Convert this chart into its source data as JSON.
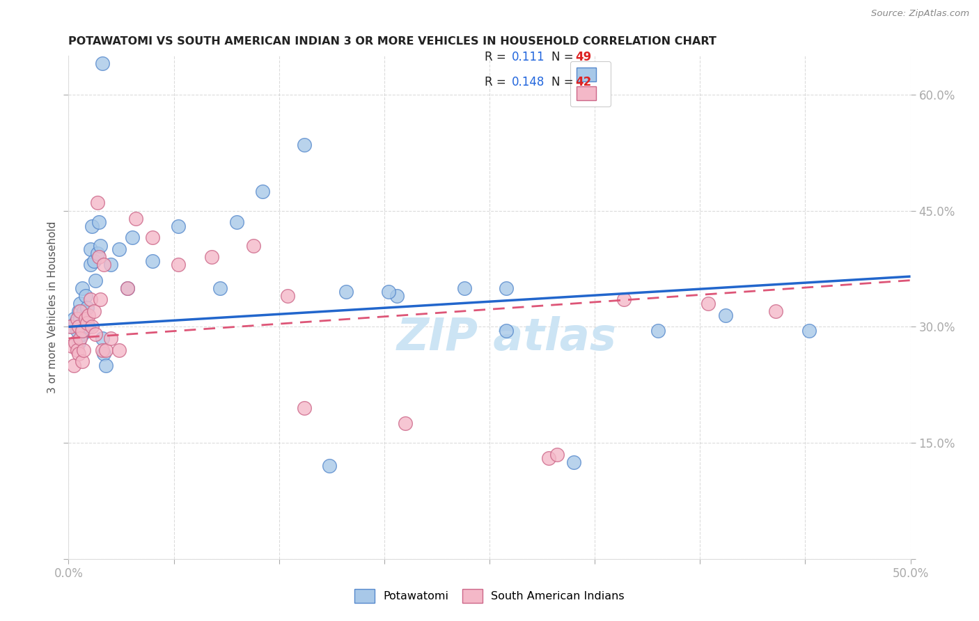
{
  "title": "POTAWATOMI VS SOUTH AMERICAN INDIAN 3 OR MORE VEHICLES IN HOUSEHOLD CORRELATION CHART",
  "source": "Source: ZipAtlas.com",
  "ylabel": "3 or more Vehicles in Household",
  "xlim": [
    0.0,
    0.5
  ],
  "ylim": [
    0.0,
    0.65
  ],
  "yticks": [
    0.0,
    0.15,
    0.3,
    0.45,
    0.6
  ],
  "xticks": [
    0.0,
    0.0625,
    0.125,
    0.1875,
    0.25,
    0.3125,
    0.375,
    0.4375,
    0.5
  ],
  "blue_scatter_color": "#a8c8e8",
  "blue_scatter_edge": "#5588cc",
  "pink_scatter_color": "#f4b8c8",
  "pink_scatter_edge": "#cc6688",
  "blue_line_color": "#2266cc",
  "pink_line_color": "#dd5577",
  "watermark_color": "#cce4f4",
  "title_color": "#222222",
  "source_color": "#888888",
  "tick_color": "#4499ee",
  "ylabel_color": "#555555",
  "background": "#ffffff",
  "grid_color": "#cccccc",
  "potawatomi_x": [
    0.002,
    0.003,
    0.004,
    0.005,
    0.006,
    0.006,
    0.007,
    0.007,
    0.008,
    0.008,
    0.009,
    0.009,
    0.01,
    0.01,
    0.011,
    0.012,
    0.013,
    0.013,
    0.014,
    0.015,
    0.016,
    0.017,
    0.018,
    0.019,
    0.02,
    0.021,
    0.022,
    0.025,
    0.03,
    0.035,
    0.038,
    0.05,
    0.065,
    0.09,
    0.1,
    0.115,
    0.14,
    0.165,
    0.195,
    0.235,
    0.26,
    0.3,
    0.35,
    0.39,
    0.44,
    0.155,
    0.26,
    0.19,
    0.02
  ],
  "potawatomi_y": [
    0.3,
    0.31,
    0.305,
    0.295,
    0.28,
    0.32,
    0.31,
    0.33,
    0.29,
    0.35,
    0.295,
    0.32,
    0.305,
    0.34,
    0.325,
    0.3,
    0.38,
    0.4,
    0.43,
    0.385,
    0.36,
    0.395,
    0.435,
    0.405,
    0.285,
    0.265,
    0.25,
    0.38,
    0.4,
    0.35,
    0.415,
    0.385,
    0.43,
    0.35,
    0.435,
    0.475,
    0.535,
    0.345,
    0.34,
    0.35,
    0.295,
    0.125,
    0.295,
    0.315,
    0.295,
    0.12,
    0.35,
    0.345,
    0.64
  ],
  "south_american_x": [
    0.001,
    0.002,
    0.003,
    0.004,
    0.005,
    0.005,
    0.006,
    0.006,
    0.007,
    0.007,
    0.008,
    0.008,
    0.009,
    0.01,
    0.011,
    0.012,
    0.013,
    0.014,
    0.015,
    0.016,
    0.017,
    0.018,
    0.019,
    0.02,
    0.021,
    0.022,
    0.025,
    0.03,
    0.035,
    0.04,
    0.05,
    0.065,
    0.085,
    0.11,
    0.14,
    0.2,
    0.285,
    0.33,
    0.38,
    0.42,
    0.29,
    0.13
  ],
  "south_american_y": [
    0.3,
    0.275,
    0.25,
    0.28,
    0.27,
    0.31,
    0.265,
    0.3,
    0.285,
    0.32,
    0.255,
    0.295,
    0.27,
    0.31,
    0.305,
    0.315,
    0.335,
    0.3,
    0.32,
    0.29,
    0.46,
    0.39,
    0.335,
    0.27,
    0.38,
    0.27,
    0.285,
    0.27,
    0.35,
    0.44,
    0.415,
    0.38,
    0.39,
    0.405,
    0.195,
    0.175,
    0.13,
    0.335,
    0.33,
    0.32,
    0.135,
    0.34
  ],
  "blue_line_x0": 0.0,
  "blue_line_y0": 0.3,
  "blue_line_x1": 0.5,
  "blue_line_y1": 0.365,
  "pink_line_x0": 0.0,
  "pink_line_y0": 0.285,
  "pink_line_x1": 0.5,
  "pink_line_y1": 0.36
}
